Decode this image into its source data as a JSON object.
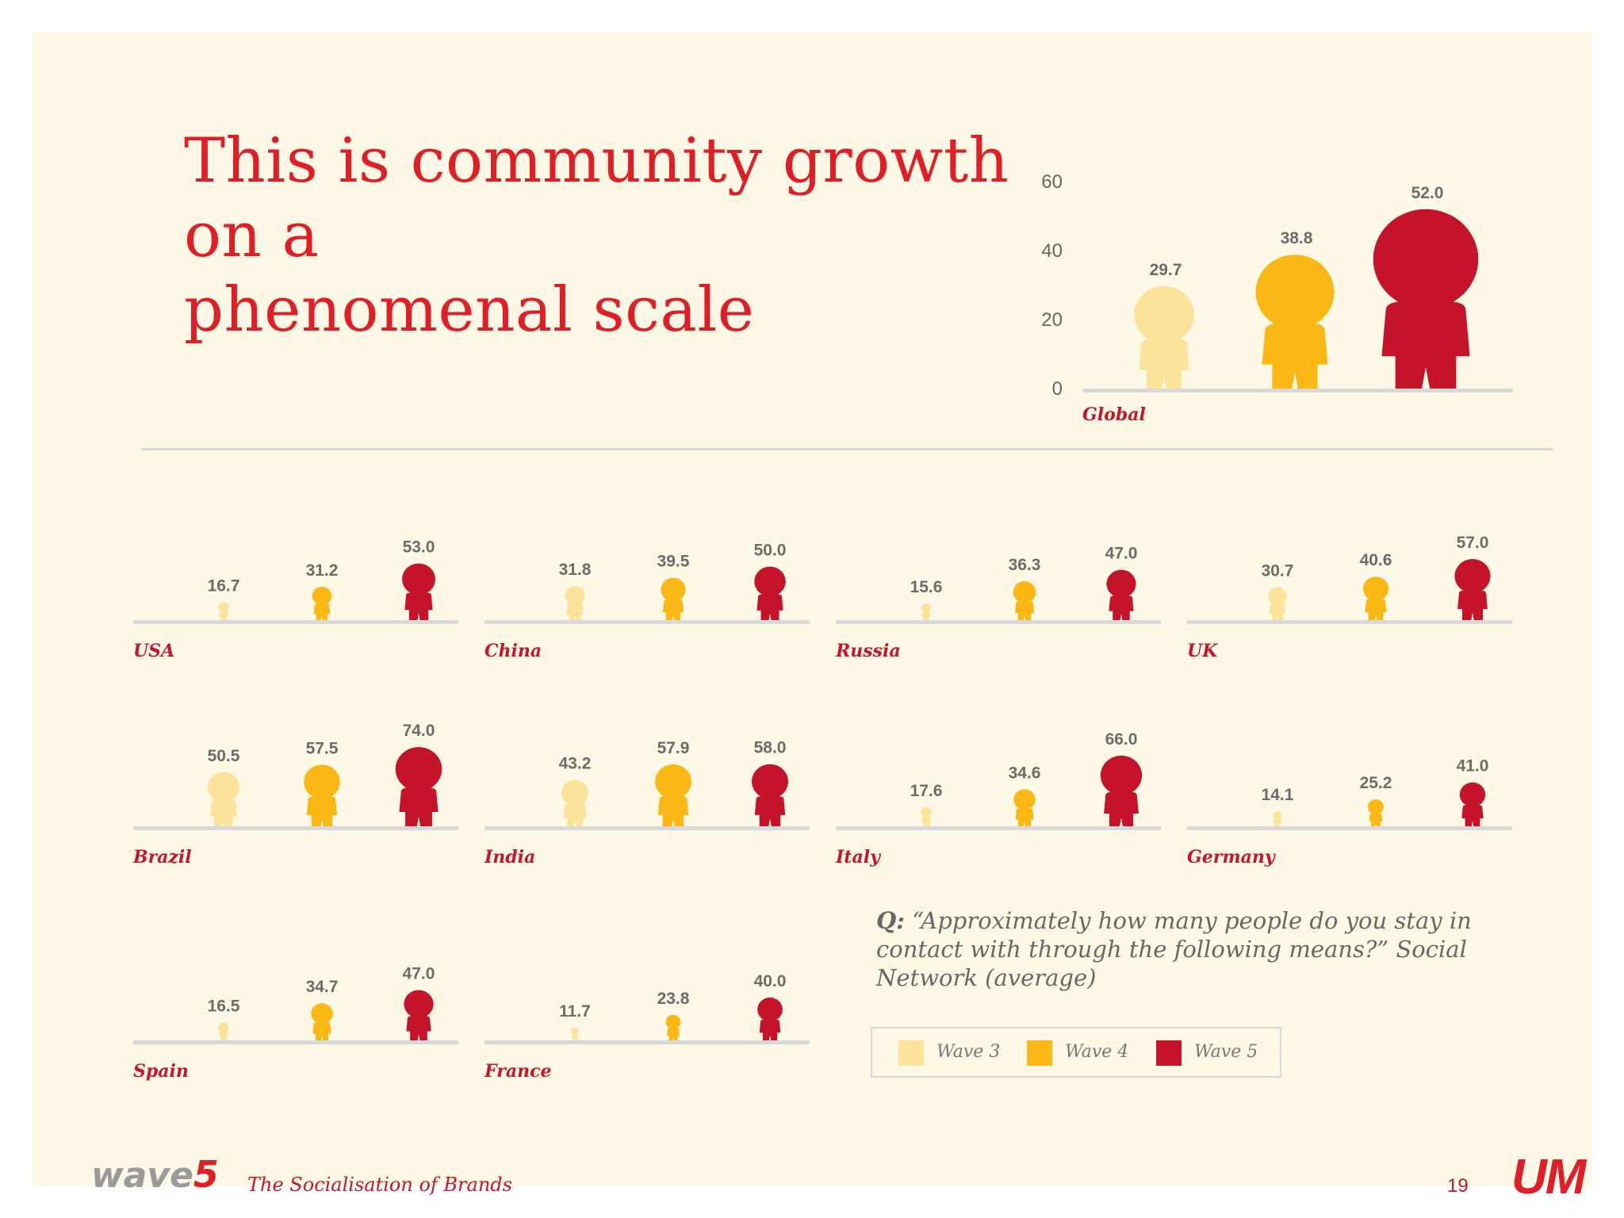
{
  "title_lines": [
    "This is community growth",
    "on a",
    "phenomenal scale"
  ],
  "series_colors": {
    "Wave 3": "#fde39a",
    "Wave 4": "#fbb814",
    "Wave 5": "#c5132a"
  },
  "chart_data": [
    {
      "type": "bar",
      "region": "Global",
      "categories": [
        "Wave 3",
        "Wave 4",
        "Wave 5"
      ],
      "values": [
        29.7,
        38.8,
        52.0
      ],
      "ylim": [
        0,
        60
      ],
      "yticks": [
        "0",
        "20",
        "40",
        "60"
      ],
      "grid": false,
      "marks": "person icons"
    },
    {
      "type": "bar",
      "region": "USA",
      "categories": [
        "Wave 3",
        "Wave 4",
        "Wave 5"
      ],
      "values": [
        16.7,
        31.2,
        53.0
      ],
      "ylim": [
        0,
        60
      ]
    },
    {
      "type": "bar",
      "region": "China",
      "categories": [
        "Wave 3",
        "Wave 4",
        "Wave 5"
      ],
      "values": [
        31.8,
        39.5,
        50.0
      ],
      "ylim": [
        0,
        60
      ]
    },
    {
      "type": "bar",
      "region": "Russia",
      "categories": [
        "Wave 3",
        "Wave 4",
        "Wave 5"
      ],
      "values": [
        15.6,
        36.3,
        47.0
      ],
      "ylim": [
        0,
        60
      ]
    },
    {
      "type": "bar",
      "region": "UK",
      "categories": [
        "Wave 3",
        "Wave 4",
        "Wave 5"
      ],
      "values": [
        30.7,
        40.6,
        57.0
      ],
      "ylim": [
        0,
        60
      ]
    },
    {
      "type": "bar",
      "region": "Brazil",
      "categories": [
        "Wave 3",
        "Wave 4",
        "Wave 5"
      ],
      "values": [
        50.5,
        57.5,
        74.0
      ],
      "ylim": [
        0,
        80
      ]
    },
    {
      "type": "bar",
      "region": "India",
      "categories": [
        "Wave 3",
        "Wave 4",
        "Wave 5"
      ],
      "values": [
        43.2,
        57.9,
        58.0
      ],
      "ylim": [
        0,
        80
      ]
    },
    {
      "type": "bar",
      "region": "Italy",
      "categories": [
        "Wave 3",
        "Wave 4",
        "Wave 5"
      ],
      "values": [
        17.6,
        34.6,
        66.0
      ],
      "ylim": [
        0,
        80
      ]
    },
    {
      "type": "bar",
      "region": "Germany",
      "categories": [
        "Wave 3",
        "Wave 4",
        "Wave 5"
      ],
      "values": [
        14.1,
        25.2,
        41.0
      ],
      "ylim": [
        0,
        50
      ]
    },
    {
      "type": "bar",
      "region": "Spain",
      "categories": [
        "Wave 3",
        "Wave 4",
        "Wave 5"
      ],
      "values": [
        16.5,
        34.7,
        47.0
      ],
      "ylim": [
        0,
        60
      ]
    },
    {
      "type": "bar",
      "region": "France",
      "categories": [
        "Wave 3",
        "Wave 4",
        "Wave 5"
      ],
      "values": [
        11.7,
        23.8,
        40.0
      ],
      "ylim": [
        0,
        50
      ]
    }
  ],
  "question": {
    "label": "Q:",
    "text": "“Approximately how many people do you stay in contact with through the following means?”  Social Network (average)"
  },
  "legend": [
    {
      "name": "Wave 3",
      "color": "#fde39a"
    },
    {
      "name": "Wave 4",
      "color": "#fbb814"
    },
    {
      "name": "Wave 5",
      "color": "#c5132a"
    }
  ],
  "footer": {
    "logo_wa": "wa",
    "logo_ve": "ve",
    "logo_5": "5",
    "subtitle": "The Socialisation of Brands",
    "page_number": "19",
    "brand": "UM"
  }
}
